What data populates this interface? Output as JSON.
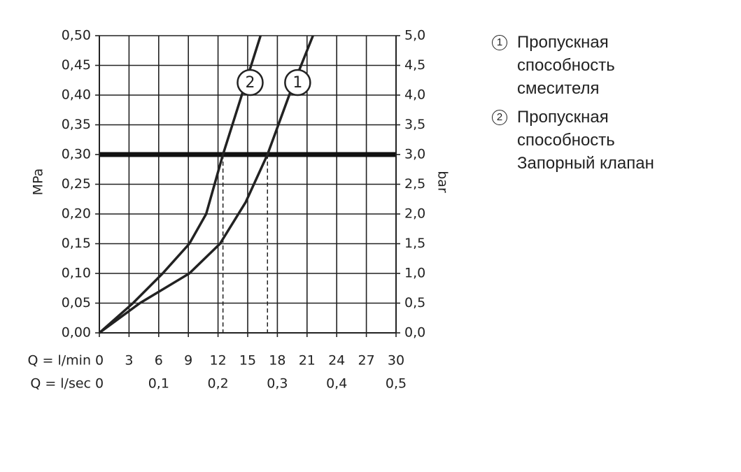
{
  "chart_data": {
    "type": "line",
    "ylabel": "MPa",
    "y2label": "bar",
    "xlabel": "Q = l/min",
    "x2label": "Q = l/sec",
    "xlim": [
      0,
      30
    ],
    "xticks": [
      0,
      3,
      6,
      9,
      12,
      15,
      18,
      21,
      24,
      27,
      30
    ],
    "x2lim": [
      0,
      0.5
    ],
    "x2ticks": [
      0,
      {
        "value": 0.1,
        "label": "0,1"
      },
      {
        "value": 0.2,
        "label": "0,2"
      },
      {
        "value": 0.3,
        "label": "0,3"
      },
      {
        "value": 0.4,
        "label": "0,4"
      },
      {
        "value": 0.5,
        "label": "0,5"
      }
    ],
    "ylim": [
      0,
      0.5
    ],
    "yticks": [
      {
        "value": 0,
        "label": "0,00"
      },
      {
        "value": 0.05,
        "label": "0,05"
      },
      {
        "value": 0.1,
        "label": "0,10"
      },
      {
        "value": 0.15,
        "label": "0,15"
      },
      {
        "value": 0.2,
        "label": "0,20"
      },
      {
        "value": 0.25,
        "label": "0,25"
      },
      {
        "value": 0.3,
        "label": "0,30"
      },
      {
        "value": 0.35,
        "label": "0,35"
      },
      {
        "value": 0.4,
        "label": "0,40"
      },
      {
        "value": 0.45,
        "label": "0,45"
      },
      {
        "value": 0.5,
        "label": "0,50"
      }
    ],
    "y2lim": [
      0,
      5
    ],
    "y2ticks": [
      {
        "value": 0,
        "label": "0,0"
      },
      {
        "value": 0.5,
        "label": "0,5"
      },
      {
        "value": 1,
        "label": "1,0"
      },
      {
        "value": 1.5,
        "label": "1,5"
      },
      {
        "value": 2,
        "label": "2,0"
      },
      {
        "value": 2.5,
        "label": "2,5"
      },
      {
        "value": 3,
        "label": "3,0"
      },
      {
        "value": 3.5,
        "label": "3,5"
      },
      {
        "value": 4,
        "label": "4,0"
      },
      {
        "value": 4.5,
        "label": "4,5"
      },
      {
        "value": 5,
        "label": "5,0"
      }
    ],
    "grid": true,
    "reference_y": 0.3,
    "series": [
      {
        "name": "Пропускная способность смесителя",
        "label": "1",
        "color": "#222222",
        "x": [
          0,
          4.1,
          9.1,
          12.2,
          14.8,
          17,
          19.2,
          21.6
        ],
        "values": [
          0,
          0.05,
          0.1,
          0.15,
          0.22,
          0.3,
          0.4,
          0.5
        ]
      },
      {
        "name": "Пропускная способность Запорный клапан",
        "label": "2",
        "color": "#222222",
        "x": [
          0,
          3.4,
          6.4,
          9.1,
          10.8,
          12.5,
          14.4,
          16.3
        ],
        "values": [
          0,
          0.05,
          0.1,
          0.15,
          0.2,
          0.3,
          0.4,
          0.5
        ]
      }
    ]
  }
}
